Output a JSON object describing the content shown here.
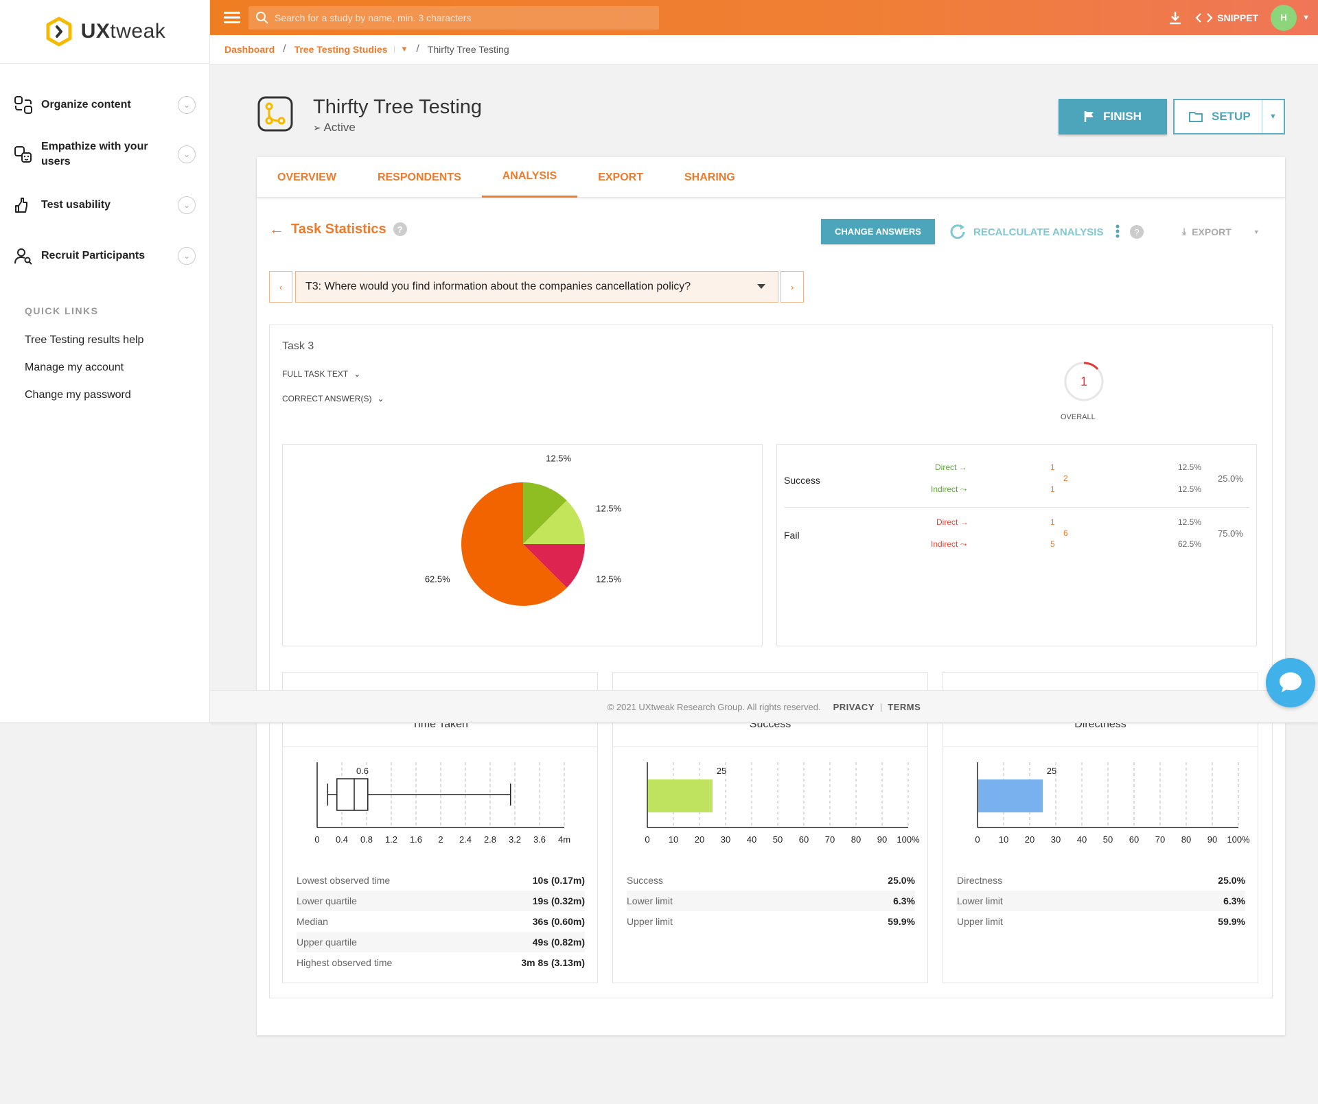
{
  "app": {
    "logo_text_a": "UX",
    "logo_text_b": "tweak"
  },
  "sidebar": {
    "items": [
      {
        "label": "Organize content"
      },
      {
        "label": "Empathize with your users"
      },
      {
        "label": "Test usability"
      },
      {
        "label": "Recruit Participants"
      }
    ],
    "quick_links_title": "QUICK LINKS",
    "quick_links": [
      "Tree Testing results help",
      "Manage my account",
      "Change my password"
    ]
  },
  "topbar": {
    "search_placeholder": "Search for a study by name, min. 3 characters",
    "snippet_label": "SNIPPET",
    "avatar_initial": "H"
  },
  "breadcrumb": {
    "dashboard": "Dashboard",
    "studies": "Tree Testing Studies",
    "current": "Thirfty Tree Testing"
  },
  "study": {
    "title": "Thirfty Tree Testing",
    "status": "Active",
    "finish_label": "FINISH",
    "setup_label": "SETUP"
  },
  "tabs": [
    "OVERVIEW",
    "RESPONDENTS",
    "ANALYSIS",
    "EXPORT",
    "SHARING"
  ],
  "analysis": {
    "section_title": "Task Statistics",
    "help": "?",
    "change_answers": "CHANGE ANSWERS",
    "recalculate": "RECALCULATE ANALYSIS",
    "export": "EXPORT",
    "task_select": "T3: Where would you find information about the companies cancellation policy?",
    "task_label": "Task 3",
    "full_task_text": "FULL TASK TEXT",
    "correct_answers": "CORRECT ANSWER(S)",
    "overall_value": "1",
    "overall_label": "OVERALL"
  },
  "chart_data": [
    {
      "type": "pie",
      "slices": [
        {
          "value": 12.5,
          "label": "12.5%",
          "color": "#8fbe22"
        },
        {
          "value": 12.5,
          "label": "12.5%",
          "color": "#c3e55a"
        },
        {
          "value": 12.5,
          "label": "12.5%",
          "color": "#dd2450"
        },
        {
          "value": 62.5,
          "label": "62.5%",
          "color": "#f26400"
        }
      ]
    },
    {
      "type": "box",
      "title": "Time Taken",
      "ticks": [
        "0",
        "0.4",
        "0.8",
        "1.2",
        "1.6",
        "2",
        "2.4",
        "2.8",
        "3.2",
        "3.6",
        "4m"
      ],
      "xlim": [
        0,
        4
      ],
      "min": 0.17,
      "q1": 0.32,
      "median": 0.6,
      "q3": 0.82,
      "max": 3.13,
      "marker_label": "0.6",
      "color": "#222222"
    },
    {
      "type": "bar",
      "title": "Success",
      "ticks": [
        "0",
        "10",
        "20",
        "30",
        "40",
        "50",
        "60",
        "70",
        "80",
        "90",
        "100%"
      ],
      "xlim": [
        0,
        100
      ],
      "value": 25,
      "value_label": "25",
      "lower": 6.3,
      "upper": 59.9,
      "color": "#bfe35e"
    },
    {
      "type": "bar",
      "title": "Directness",
      "ticks": [
        "0",
        "10",
        "20",
        "30",
        "40",
        "50",
        "60",
        "70",
        "80",
        "90",
        "100%"
      ],
      "xlim": [
        0,
        100
      ],
      "value": 25,
      "value_label": "25",
      "lower": 6.3,
      "upper": 59.9,
      "color": "#78b1ee"
    }
  ],
  "outcomes": {
    "success": {
      "name": "Success",
      "direct_label": "Direct",
      "indirect_label": "Indirect",
      "direct": "1",
      "indirect": "1",
      "total": "2",
      "direct_pct": "12.5%",
      "indirect_pct": "12.5%",
      "total_pct": "25.0%"
    },
    "fail": {
      "name": "Fail",
      "direct_label": "Direct",
      "indirect_label": "Indirect",
      "direct": "1",
      "indirect": "5",
      "total": "6",
      "direct_pct": "12.5%",
      "indirect_pct": "62.5%",
      "total_pct": "75.0%"
    }
  },
  "time_stats": [
    {
      "label": "Lowest observed time",
      "value": "10s (0.17m)"
    },
    {
      "label": "Lower quartile",
      "value": "19s (0.32m)"
    },
    {
      "label": "Median",
      "value": "36s (0.60m)"
    },
    {
      "label": "Upper quartile",
      "value": "49s (0.82m)"
    },
    {
      "label": "Highest observed time",
      "value": "3m 8s (3.13m)"
    }
  ],
  "success_stats": [
    {
      "label": "Success",
      "value": "25.0%"
    },
    {
      "label": "Lower limit",
      "value": "6.3%"
    },
    {
      "label": "Upper limit",
      "value": "59.9%"
    }
  ],
  "directness_stats": [
    {
      "label": "Directness",
      "value": "25.0%"
    },
    {
      "label": "Lower limit",
      "value": "6.3%"
    },
    {
      "label": "Upper limit",
      "value": "59.9%"
    }
  ],
  "footer": {
    "copyright": "© 2021 UXtweak Research Group. All rights reserved.",
    "privacy": "PRIVACY",
    "terms": "TERMS"
  }
}
